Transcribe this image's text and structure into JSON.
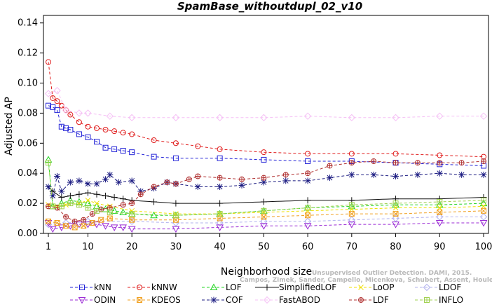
{
  "chart_data": {
    "type": "line",
    "title": "SpamBase_withoutdupl_02_v10",
    "xlabel": "Neighborhood size",
    "ylabel": "Adjusted AP",
    "xlim": [
      1,
      100
    ],
    "ylim": [
      0,
      0.145
    ],
    "xticks": [
      1,
      10,
      20,
      30,
      40,
      50,
      60,
      70,
      80,
      90,
      100
    ],
    "xtick_labels": [
      "1",
      "10",
      "20",
      "30",
      "40",
      "50",
      "60",
      "70",
      "80",
      "90",
      "100"
    ],
    "yticks": [
      0,
      0.02,
      0.04,
      0.06,
      0.08,
      0.1,
      0.12,
      0.14
    ],
    "ytick_labels": [
      "0.00",
      "0.02",
      "0.04",
      "0.06",
      "0.08",
      "0.10",
      "0.12",
      "0.14"
    ],
    "grid": false,
    "legend_position": "bottom",
    "watermark": [
      "Unsupervised Outlier Detection. DAMI, 2015.",
      "Campos, Zimek, Sander, Campello, Micenkova, Schubert, Assent, Houle"
    ],
    "series": [
      {
        "name": "kNN",
        "color": "#2323d7",
        "marker": "square",
        "dash": "4,3",
        "points": [
          [
            1,
            0.085
          ],
          [
            2,
            0.084
          ],
          [
            3,
            0.082
          ],
          [
            4,
            0.071
          ],
          [
            5,
            0.07
          ],
          [
            6,
            0.069
          ],
          [
            8,
            0.066
          ],
          [
            10,
            0.064
          ],
          [
            12,
            0.061
          ],
          [
            14,
            0.057
          ],
          [
            16,
            0.056
          ],
          [
            18,
            0.055
          ],
          [
            20,
            0.054
          ],
          [
            25,
            0.051
          ],
          [
            30,
            0.05
          ],
          [
            40,
            0.05
          ],
          [
            50,
            0.049
          ],
          [
            60,
            0.048
          ],
          [
            70,
            0.048
          ],
          [
            80,
            0.047
          ],
          [
            90,
            0.046
          ],
          [
            100,
            0.045
          ]
        ]
      },
      {
        "name": "kNNW",
        "color": "#e01d1d",
        "marker": "circle",
        "dash": "4,3",
        "points": [
          [
            1,
            0.114
          ],
          [
            2,
            0.09
          ],
          [
            3,
            0.088
          ],
          [
            4,
            0.085
          ],
          [
            5,
            0.082
          ],
          [
            6,
            0.079
          ],
          [
            8,
            0.074
          ],
          [
            10,
            0.071
          ],
          [
            12,
            0.07
          ],
          [
            14,
            0.069
          ],
          [
            16,
            0.068
          ],
          [
            18,
            0.067
          ],
          [
            20,
            0.066
          ],
          [
            25,
            0.062
          ],
          [
            30,
            0.06
          ],
          [
            35,
            0.058
          ],
          [
            40,
            0.056
          ],
          [
            50,
            0.054
          ],
          [
            60,
            0.053
          ],
          [
            70,
            0.053
          ],
          [
            80,
            0.053
          ],
          [
            90,
            0.052
          ],
          [
            100,
            0.051
          ]
        ]
      },
      {
        "name": "LOF",
        "color": "#22d522",
        "marker": "triangle",
        "dash": "4,3",
        "points": [
          [
            1,
            0.049
          ],
          [
            2,
            0.018
          ],
          [
            4,
            0.02
          ],
          [
            6,
            0.022
          ],
          [
            8,
            0.021
          ],
          [
            10,
            0.02
          ],
          [
            12,
            0.018
          ],
          [
            14,
            0.016
          ],
          [
            16,
            0.015
          ],
          [
            18,
            0.014
          ],
          [
            20,
            0.013
          ],
          [
            25,
            0.012
          ],
          [
            30,
            0.012
          ],
          [
            40,
            0.013
          ],
          [
            50,
            0.015
          ],
          [
            60,
            0.017
          ],
          [
            70,
            0.018
          ],
          [
            80,
            0.019
          ],
          [
            90,
            0.019
          ],
          [
            100,
            0.02
          ]
        ]
      },
      {
        "name": "SimplifiedLOF",
        "color": "#111111",
        "marker": "plus",
        "dash": "none",
        "points": [
          [
            1,
            0.031
          ],
          [
            2,
            0.028
          ],
          [
            4,
            0.024
          ],
          [
            6,
            0.025
          ],
          [
            8,
            0.026
          ],
          [
            10,
            0.027
          ],
          [
            12,
            0.026
          ],
          [
            14,
            0.025
          ],
          [
            16,
            0.024
          ],
          [
            18,
            0.023
          ],
          [
            20,
            0.022
          ],
          [
            25,
            0.021
          ],
          [
            30,
            0.02
          ],
          [
            40,
            0.02
          ],
          [
            50,
            0.021
          ],
          [
            60,
            0.022
          ],
          [
            70,
            0.022
          ],
          [
            80,
            0.023
          ],
          [
            90,
            0.023
          ],
          [
            100,
            0.024
          ]
        ]
      },
      {
        "name": "LoOP",
        "color": "#f0e000",
        "marker": "x",
        "dash": "4,3",
        "points": [
          [
            1,
            0.019
          ],
          [
            3,
            0.018
          ],
          [
            5,
            0.019
          ],
          [
            8,
            0.02
          ],
          [
            10,
            0.022
          ],
          [
            12,
            0.02
          ],
          [
            15,
            0.018
          ],
          [
            20,
            0.015
          ],
          [
            30,
            0.013
          ],
          [
            40,
            0.013
          ],
          [
            50,
            0.014
          ],
          [
            60,
            0.015
          ],
          [
            70,
            0.016
          ],
          [
            80,
            0.017
          ],
          [
            90,
            0.017
          ],
          [
            100,
            0.018
          ]
        ]
      },
      {
        "name": "LDOF",
        "color": "#b2b2ee",
        "marker": "diamond",
        "dash": "4,3",
        "points": [
          [
            1,
            0.006
          ],
          [
            5,
            0.007
          ],
          [
            10,
            0.008
          ],
          [
            20,
            0.008
          ],
          [
            30,
            0.007
          ],
          [
            40,
            0.007
          ],
          [
            50,
            0.008
          ],
          [
            60,
            0.008
          ],
          [
            70,
            0.009
          ],
          [
            80,
            0.01
          ],
          [
            90,
            0.011
          ],
          [
            100,
            0.011
          ]
        ]
      },
      {
        "name": "ODIN",
        "color": "#9b2bd5",
        "marker": "invtriangle",
        "dash": "4,3",
        "points": [
          [
            1,
            0.007
          ],
          [
            2,
            0.003
          ],
          [
            4,
            0.004
          ],
          [
            6,
            0.005
          ],
          [
            8,
            0.006
          ],
          [
            10,
            0.006
          ],
          [
            12,
            0.006
          ],
          [
            14,
            0.005
          ],
          [
            16,
            0.004
          ],
          [
            18,
            0.004
          ],
          [
            20,
            0.003
          ],
          [
            30,
            0.003
          ],
          [
            40,
            0.004
          ],
          [
            50,
            0.005
          ],
          [
            60,
            0.005
          ],
          [
            70,
            0.006
          ],
          [
            80,
            0.006
          ],
          [
            90,
            0.007
          ],
          [
            100,
            0.007
          ]
        ]
      },
      {
        "name": "KDEOS",
        "color": "#f0a020",
        "marker": "squarex",
        "dash": "4,3",
        "points": [
          [
            1,
            0.008
          ],
          [
            3,
            0.007
          ],
          [
            5,
            0.005
          ],
          [
            7,
            0.004
          ],
          [
            9,
            0.005
          ],
          [
            11,
            0.007
          ],
          [
            13,
            0.009
          ],
          [
            15,
            0.01
          ],
          [
            20,
            0.009
          ],
          [
            30,
            0.009
          ],
          [
            40,
            0.01
          ],
          [
            50,
            0.011
          ],
          [
            60,
            0.012
          ],
          [
            70,
            0.013
          ],
          [
            80,
            0.013
          ],
          [
            90,
            0.014
          ],
          [
            100,
            0.015
          ]
        ]
      },
      {
        "name": "COF",
        "color": "#1a1a80",
        "marker": "star",
        "dash": "4,3",
        "points": [
          [
            1,
            0.031
          ],
          [
            2,
            0.025
          ],
          [
            3,
            0.038
          ],
          [
            4,
            0.028
          ],
          [
            6,
            0.034
          ],
          [
            8,
            0.035
          ],
          [
            10,
            0.033
          ],
          [
            12,
            0.033
          ],
          [
            14,
            0.036
          ],
          [
            15,
            0.039
          ],
          [
            17,
            0.034
          ],
          [
            20,
            0.035
          ],
          [
            22,
            0.028
          ],
          [
            25,
            0.03
          ],
          [
            28,
            0.034
          ],
          [
            30,
            0.033
          ],
          [
            35,
            0.031
          ],
          [
            40,
            0.031
          ],
          [
            45,
            0.032
          ],
          [
            50,
            0.034
          ],
          [
            55,
            0.035
          ],
          [
            60,
            0.035
          ],
          [
            65,
            0.037
          ],
          [
            70,
            0.039
          ],
          [
            75,
            0.039
          ],
          [
            80,
            0.038
          ],
          [
            85,
            0.039
          ],
          [
            90,
            0.04
          ],
          [
            95,
            0.039
          ],
          [
            100,
            0.039
          ]
        ]
      },
      {
        "name": "FastABOD",
        "color": "#f5c0f5",
        "marker": "diamond",
        "dash": "4,3",
        "points": [
          [
            1,
            0.093
          ],
          [
            3,
            0.095
          ],
          [
            5,
            0.082
          ],
          [
            8,
            0.08
          ],
          [
            10,
            0.08
          ],
          [
            15,
            0.078
          ],
          [
            20,
            0.077
          ],
          [
            30,
            0.077
          ],
          [
            40,
            0.077
          ],
          [
            50,
            0.077
          ],
          [
            60,
            0.078
          ],
          [
            70,
            0.077
          ],
          [
            80,
            0.077
          ],
          [
            90,
            0.078
          ],
          [
            100,
            0.078
          ]
        ]
      },
      {
        "name": "LDF",
        "color": "#b03030",
        "marker": "circleplus",
        "dash": "4,3",
        "points": [
          [
            1,
            0.018
          ],
          [
            3,
            0.017
          ],
          [
            5,
            0.011
          ],
          [
            7,
            0.008
          ],
          [
            9,
            0.009
          ],
          [
            11,
            0.013
          ],
          [
            13,
            0.016
          ],
          [
            15,
            0.017
          ],
          [
            18,
            0.019
          ],
          [
            20,
            0.02
          ],
          [
            22,
            0.026
          ],
          [
            25,
            0.031
          ],
          [
            28,
            0.034
          ],
          [
            30,
            0.033
          ],
          [
            33,
            0.036
          ],
          [
            35,
            0.038
          ],
          [
            40,
            0.037
          ],
          [
            45,
            0.036
          ],
          [
            50,
            0.037
          ],
          [
            55,
            0.039
          ],
          [
            60,
            0.04
          ],
          [
            65,
            0.045
          ],
          [
            70,
            0.047
          ],
          [
            75,
            0.048
          ],
          [
            80,
            0.047
          ],
          [
            85,
            0.047
          ],
          [
            90,
            0.047
          ],
          [
            95,
            0.047
          ],
          [
            100,
            0.048
          ]
        ]
      },
      {
        "name": "INFLO",
        "color": "#a0d050",
        "marker": "squarecross",
        "dash": "4,3",
        "points": [
          [
            1,
            0.047
          ],
          [
            2,
            0.018
          ],
          [
            4,
            0.018
          ],
          [
            6,
            0.02
          ],
          [
            8,
            0.019
          ],
          [
            10,
            0.017
          ],
          [
            12,
            0.015
          ],
          [
            15,
            0.014
          ],
          [
            20,
            0.013
          ],
          [
            30,
            0.012
          ],
          [
            40,
            0.013
          ],
          [
            50,
            0.015
          ],
          [
            60,
            0.017
          ],
          [
            70,
            0.019
          ],
          [
            80,
            0.02
          ],
          [
            90,
            0.021
          ],
          [
            100,
            0.022
          ]
        ]
      }
    ]
  }
}
